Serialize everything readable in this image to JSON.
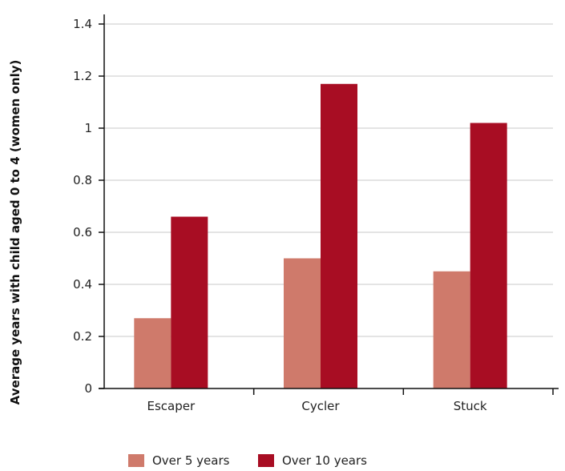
{
  "chart_data": {
    "type": "bar",
    "categories": [
      "Escaper",
      "Cycler",
      "Stuck"
    ],
    "series": [
      {
        "name": "Over 5 years",
        "values": [
          0.27,
          0.5,
          0.45
        ],
        "color": "#cf7a6b"
      },
      {
        "name": "Over 10 years",
        "values": [
          0.66,
          1.17,
          1.02
        ],
        "color": "#a80d23"
      }
    ],
    "ylabel": "Average years with child aged 0 to 4 (women only)",
    "xlabel": "",
    "ylim": [
      0,
      1.4
    ],
    "yticks": [
      "0",
      "0.2",
      "0.4",
      "0.6",
      "0.8",
      "1",
      "1.2",
      "1.4"
    ],
    "grid": true,
    "legend_position": "bottom"
  }
}
